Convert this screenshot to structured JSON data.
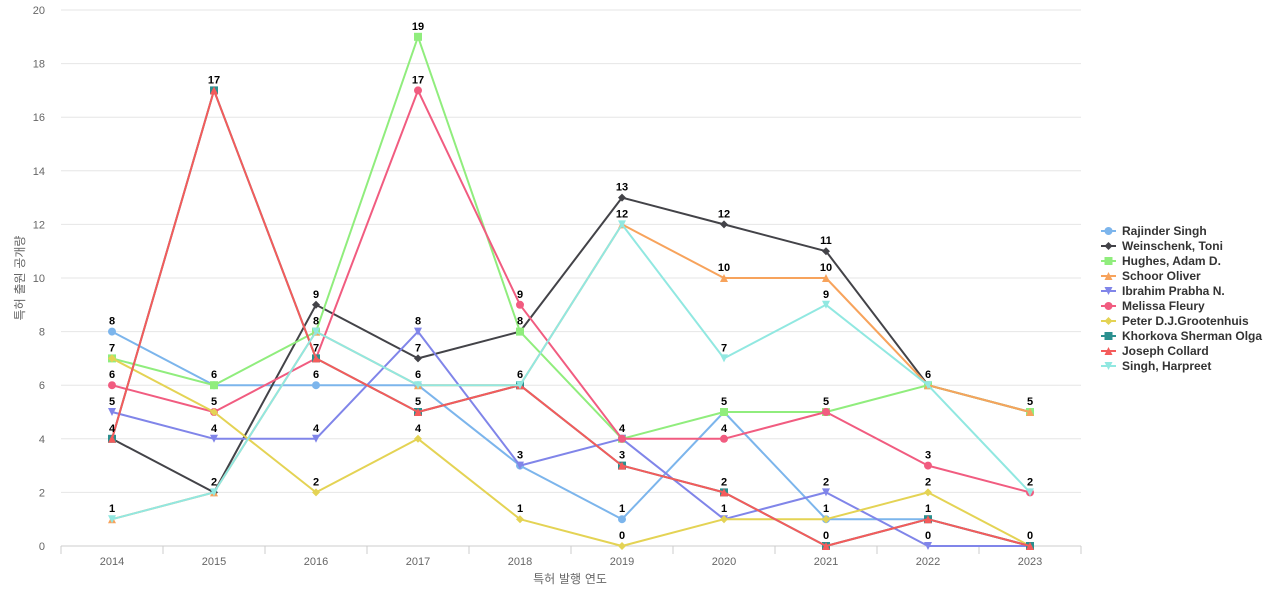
{
  "chart_data": {
    "type": "line",
    "xlabel": "특허 발행 연도",
    "ylabel": "특허 출원 공개량",
    "ylim": [
      0,
      20
    ],
    "yticks": [
      0,
      2,
      4,
      6,
      8,
      10,
      12,
      14,
      16,
      18,
      20
    ],
    "grid": true,
    "legend_position": "right",
    "x": [
      "2014",
      "2015",
      "2016",
      "2017",
      "2018",
      "2019",
      "2020",
      "2021",
      "2022",
      "2023"
    ],
    "series": [
      {
        "name": "Rajinder Singh",
        "color": "#7cb5ec",
        "marker": "circle",
        "values": [
          8,
          6,
          6,
          6,
          3,
          1,
          5,
          1,
          1,
          0
        ]
      },
      {
        "name": "Weinschenk, Toni",
        "color": "#434348",
        "marker": "diamond",
        "values": [
          4,
          2,
          9,
          7,
          8,
          13,
          12,
          11,
          6,
          5
        ]
      },
      {
        "name": "Hughes, Adam D.",
        "color": "#90ed7d",
        "marker": "square",
        "values": [
          7,
          6,
          8,
          19,
          8,
          4,
          5,
          5,
          6,
          5
        ]
      },
      {
        "name": "Schoor Oliver",
        "color": "#f7a35c",
        "marker": "triangle",
        "values": [
          1,
          2,
          8,
          6,
          6,
          12,
          10,
          10,
          6,
          5
        ]
      },
      {
        "name": "Ibrahim Prabha N.",
        "color": "#8085e9",
        "marker": "triangle-down",
        "values": [
          5,
          4,
          4,
          8,
          3,
          4,
          1,
          2,
          0,
          0
        ]
      },
      {
        "name": "Melissa Fleury",
        "color": "#f15c80",
        "marker": "circle",
        "values": [
          6,
          5,
          7,
          17,
          9,
          4,
          4,
          5,
          3,
          2
        ]
      },
      {
        "name": "Peter D.J.Grootenhuis",
        "color": "#e4d354",
        "marker": "diamond",
        "values": [
          7,
          5,
          2,
          4,
          1,
          0,
          1,
          1,
          2,
          0
        ]
      },
      {
        "name": "Khorkova Sherman Olga",
        "color": "#2b908f",
        "marker": "square",
        "values": [
          4,
          17,
          7,
          5,
          6,
          3,
          2,
          0,
          1,
          0
        ]
      },
      {
        "name": "Joseph Collard",
        "color": "#f45b5b",
        "marker": "triangle",
        "values": [
          4,
          17,
          7,
          5,
          6,
          3,
          2,
          0,
          1,
          0
        ]
      },
      {
        "name": "Singh, Harpreet",
        "color": "#91e8e1",
        "marker": "triangle-down",
        "values": [
          1,
          2,
          8,
          6,
          6,
          12,
          7,
          9,
          6,
          2
        ]
      }
    ],
    "data_labels": [
      {
        "x": "2014",
        "y": 8,
        "text": "8"
      },
      {
        "x": "2014",
        "y": 7,
        "text": "7"
      },
      {
        "x": "2014",
        "y": 6,
        "text": "6"
      },
      {
        "x": "2014",
        "y": 5,
        "text": "5"
      },
      {
        "x": "2014",
        "y": 4,
        "text": "4"
      },
      {
        "x": "2014",
        "y": 1,
        "text": "1"
      },
      {
        "x": "2015",
        "y": 17,
        "text": "17"
      },
      {
        "x": "2015",
        "y": 6,
        "text": "6"
      },
      {
        "x": "2015",
        "y": 5,
        "text": "5"
      },
      {
        "x": "2015",
        "y": 4,
        "text": "4"
      },
      {
        "x": "2015",
        "y": 2,
        "text": "2"
      },
      {
        "x": "2016",
        "y": 9,
        "text": "9"
      },
      {
        "x": "2016",
        "y": 8,
        "text": "8"
      },
      {
        "x": "2016",
        "y": 7,
        "text": "7"
      },
      {
        "x": "2016",
        "y": 6,
        "text": "6"
      },
      {
        "x": "2016",
        "y": 4,
        "text": "4"
      },
      {
        "x": "2016",
        "y": 2,
        "text": "2"
      },
      {
        "x": "2017",
        "y": 19,
        "text": "19"
      },
      {
        "x": "2017",
        "y": 17,
        "text": "17"
      },
      {
        "x": "2017",
        "y": 8,
        "text": "8"
      },
      {
        "x": "2017",
        "y": 7,
        "text": "7"
      },
      {
        "x": "2017",
        "y": 6,
        "text": "6"
      },
      {
        "x": "2017",
        "y": 5,
        "text": "5"
      },
      {
        "x": "2017",
        "y": 4,
        "text": "4"
      },
      {
        "x": "2018",
        "y": 9,
        "text": "9"
      },
      {
        "x": "2018",
        "y": 8,
        "text": "8"
      },
      {
        "x": "2018",
        "y": 6,
        "text": "6"
      },
      {
        "x": "2018",
        "y": 3,
        "text": "3"
      },
      {
        "x": "2018",
        "y": 1,
        "text": "1"
      },
      {
        "x": "2019",
        "y": 13,
        "text": "13"
      },
      {
        "x": "2019",
        "y": 12,
        "text": "12"
      },
      {
        "x": "2019",
        "y": 4,
        "text": "4"
      },
      {
        "x": "2019",
        "y": 3,
        "text": "3"
      },
      {
        "x": "2019",
        "y": 1,
        "text": "1"
      },
      {
        "x": "2019",
        "y": 0,
        "text": "0"
      },
      {
        "x": "2020",
        "y": 12,
        "text": "12"
      },
      {
        "x": "2020",
        "y": 10,
        "text": "10"
      },
      {
        "x": "2020",
        "y": 7,
        "text": "7"
      },
      {
        "x": "2020",
        "y": 5,
        "text": "5"
      },
      {
        "x": "2020",
        "y": 4,
        "text": "4"
      },
      {
        "x": "2020",
        "y": 2,
        "text": "2"
      },
      {
        "x": "2020",
        "y": 1,
        "text": "1"
      },
      {
        "x": "2021",
        "y": 11,
        "text": "11"
      },
      {
        "x": "2021",
        "y": 10,
        "text": "10"
      },
      {
        "x": "2021",
        "y": 9,
        "text": "9"
      },
      {
        "x": "2021",
        "y": 5,
        "text": "5"
      },
      {
        "x": "2021",
        "y": 2,
        "text": "2"
      },
      {
        "x": "2021",
        "y": 1,
        "text": "1"
      },
      {
        "x": "2021",
        "y": 0,
        "text": "0"
      },
      {
        "x": "2022",
        "y": 6,
        "text": "6"
      },
      {
        "x": "2022",
        "y": 3,
        "text": "3"
      },
      {
        "x": "2022",
        "y": 2,
        "text": "2"
      },
      {
        "x": "2022",
        "y": 1,
        "text": "1"
      },
      {
        "x": "2022",
        "y": 0,
        "text": "0"
      },
      {
        "x": "2023",
        "y": 5,
        "text": "5"
      },
      {
        "x": "2023",
        "y": 2,
        "text": "2"
      },
      {
        "x": "2023",
        "y": 0,
        "text": "0"
      }
    ]
  }
}
